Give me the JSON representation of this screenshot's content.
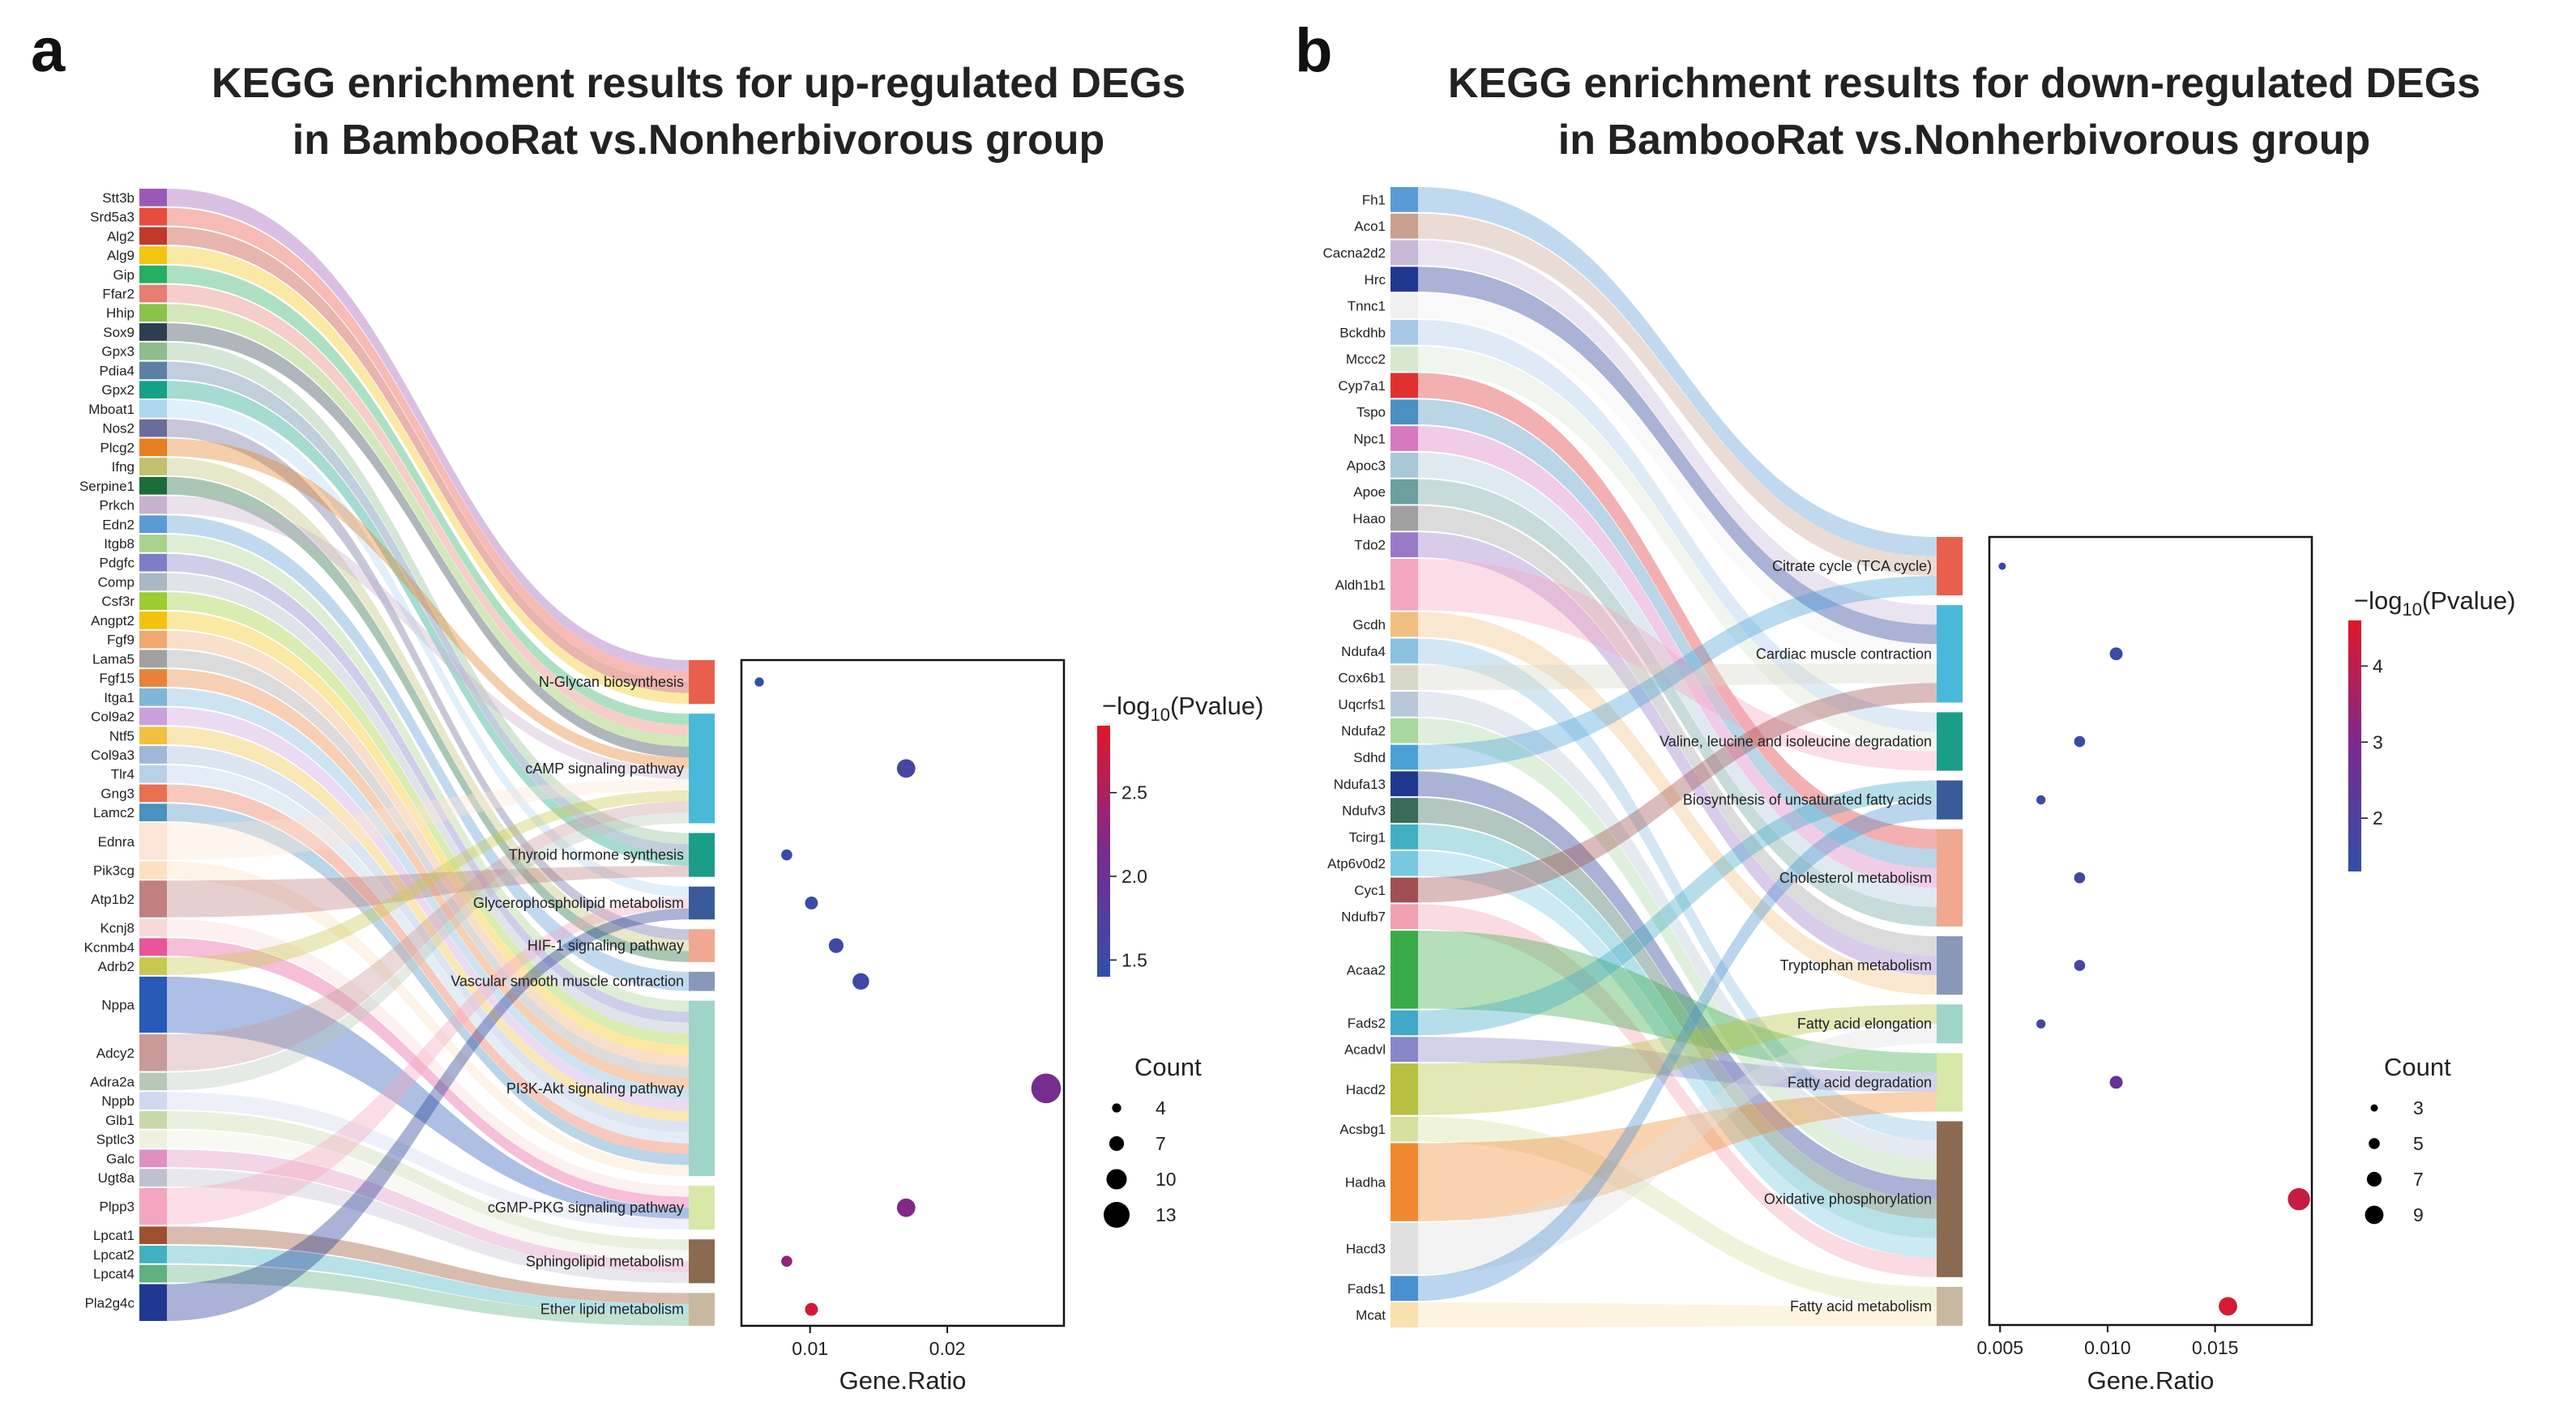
{
  "panels": [
    {
      "letter": "a",
      "title_lines": [
        "KEGG enrichment results for up-regulated DEGs",
        "in BambooRat vs.Nonherbivorous group"
      ],
      "genes": [
        "Stt3b",
        "Srd5a3",
        "Alg2",
        "Alg9",
        "Gip",
        "Ffar2",
        "Hhip",
        "Sox9",
        "Gpx3",
        "Pdia4",
        "Gpx2",
        "Mboat1",
        "Nos2",
        "Plcg2",
        "Ifng",
        "Serpine1",
        "Prkch",
        "Edn2",
        "Itgb8",
        "Pdgfc",
        "Comp",
        "Csf3r",
        "Angpt2",
        "Fgf9",
        "Lama5",
        "Fgf15",
        "Itga1",
        "Col9a2",
        "Ntf5",
        "Col9a3",
        "Tlr4",
        "Gng3",
        "Lamc2",
        "Ednra",
        "Pik3cg",
        "Atp1b2",
        "Kcnj8",
        "Kcnmb4",
        "Adrb2",
        "Nppa",
        "Adcy2",
        "Adra2a",
        "Nppb",
        "Glb1",
        "Sptlc3",
        "Galc",
        "Ugt8a",
        "Plpp3",
        "Lpcat1",
        "Lpcat2",
        "Lpcat4",
        "Pla2g4c"
      ],
      "gene_colors": [
        "#9b59b6",
        "#e74c3c",
        "#c0392b",
        "#f1c40f",
        "#27ae60",
        "#e67e73",
        "#8bc34a",
        "#2c3e50",
        "#8fbc8f",
        "#5d7fa3",
        "#16a085",
        "#aed6f1",
        "#6c6c9c",
        "#e67e22",
        "#c0c070",
        "#1e6b3a",
        "#c8b0d0",
        "#5b9bd5",
        "#a9d18e",
        "#7e7ec8",
        "#aab7c4",
        "#9acd32",
        "#f4c20d",
        "#f0a870",
        "#a0a0a0",
        "#e8823a",
        "#7eb6d9",
        "#c9a0dc",
        "#f0c040",
        "#a0b8d8",
        "#b8d0e8",
        "#e87050",
        "#4a90c0",
        "#fce4d6",
        "#fde0c0",
        "#c08080",
        "#f8d8d8",
        "#e8559a",
        "#c8c850",
        "#2858b8",
        "#c89a98",
        "#b8c8b8",
        "#d0d8f0",
        "#c8d8a8",
        "#f0f0e0",
        "#e090c0",
        "#c0c0d0",
        "#f4a6c0",
        "#9c5030",
        "#40b0c0",
        "#60b080",
        "#203890"
      ],
      "gene_weights": [
        1,
        1,
        1,
        1,
        1,
        1,
        1,
        1,
        1,
        1,
        1,
        1,
        1,
        1,
        1,
        1,
        1,
        1,
        1,
        1,
        1,
        1,
        1,
        1,
        1,
        1,
        1,
        1,
        1,
        1,
        1,
        1,
        1,
        2,
        1,
        2,
        1,
        1,
        1,
        3,
        2,
        1,
        1,
        1,
        1,
        1,
        1,
        2,
        1,
        1,
        1,
        2
      ],
      "pathways": [
        "N-Glycan biosynthesis",
        "cAMP signaling pathway",
        "Thyroid hormone synthesis",
        "Glycerophospholipid metabolism",
        "HIF-1 signaling pathway",
        "Vascular smooth muscle contraction",
        "PI3K-Akt signaling pathway",
        "cGMP-PKG signaling pathway",
        "Sphingolipid metabolism",
        "Ether lipid metabolism"
      ],
      "pathway_colors": [
        "#e8604c",
        "#4ab8d8",
        "#1a9e8a",
        "#3a5a9a",
        "#f0a890",
        "#8898b8",
        "#9fd4c8",
        "#d8e8a8",
        "#8a6a50",
        "#c8b8a0"
      ],
      "links": [
        [
          0,
          0
        ],
        [
          1,
          0
        ],
        [
          2,
          0
        ],
        [
          3,
          0
        ],
        [
          4,
          1
        ],
        [
          5,
          1
        ],
        [
          6,
          1
        ],
        [
          7,
          1
        ],
        [
          8,
          2
        ],
        [
          9,
          2
        ],
        [
          10,
          2
        ],
        [
          11,
          3
        ],
        [
          12,
          4
        ],
        [
          13,
          1
        ],
        [
          14,
          4
        ],
        [
          15,
          4
        ],
        [
          16,
          1
        ],
        [
          17,
          5
        ],
        [
          18,
          6
        ],
        [
          19,
          6
        ],
        [
          20,
          6
        ],
        [
          21,
          6
        ],
        [
          22,
          6
        ],
        [
          23,
          6
        ],
        [
          24,
          6
        ],
        [
          25,
          6
        ],
        [
          26,
          6
        ],
        [
          27,
          6
        ],
        [
          28,
          6
        ],
        [
          29,
          6
        ],
        [
          30,
          6
        ],
        [
          31,
          6
        ],
        [
          32,
          6
        ],
        [
          33,
          1
        ],
        [
          34,
          6
        ],
        [
          35,
          2
        ],
        [
          36,
          7
        ],
        [
          37,
          7
        ],
        [
          38,
          1
        ],
        [
          39,
          7
        ],
        [
          40,
          1
        ],
        [
          41,
          1
        ],
        [
          42,
          7
        ],
        [
          43,
          8
        ],
        [
          44,
          8
        ],
        [
          45,
          8
        ],
        [
          46,
          8
        ],
        [
          47,
          3
        ],
        [
          48,
          9
        ],
        [
          49,
          9
        ],
        [
          50,
          9
        ],
        [
          51,
          3
        ]
      ],
      "right_pathway_ticks": true
    },
    {
      "letter": "b",
      "title_lines": [
        "KEGG enrichment results for down-regulated DEGs",
        "in BambooRat vs.Nonherbivorous group"
      ],
      "genes": [
        "Fh1",
        "Aco1",
        "Cacna2d2",
        "Hrc",
        "Tnnc1",
        "Bckdhb",
        "Mccc2",
        "Cyp7a1",
        "Tspo",
        "Npc1",
        "Apoc3",
        "Apoe",
        "Haao",
        "Tdo2",
        "Aldh1b1",
        "Gcdh",
        "Ndufa4",
        "Cox6b1",
        "Uqcrfs1",
        "Ndufa2",
        "Sdhd",
        "Ndufa13",
        "Ndufv3",
        "Tcirg1",
        "Atp6v0d2",
        "Cyc1",
        "Ndufb7",
        "Acaa2",
        "Fads2",
        "Acadvl",
        "Hacd2",
        "Acsbg1",
        "Hadha",
        "Hacd3",
        "Fads1",
        "Mcat"
      ],
      "gene_colors": [
        "#5b9bd5",
        "#c8a090",
        "#c8b8d8",
        "#203890",
        "#f0f0f0",
        "#a8c8e8",
        "#d8e8d0",
        "#e03030",
        "#4a90c0",
        "#d878c0",
        "#a8c8d8",
        "#6ca0a0",
        "#a0a0a0",
        "#9a7ac8",
        "#f4a6c0",
        "#f0c080",
        "#8ac0e0",
        "#d8d8c8",
        "#b8c8d8",
        "#a8d8a0",
        "#4aa0d8",
        "#203890",
        "#3a6a5a",
        "#40b0c0",
        "#78c8e0",
        "#a05050",
        "#f0a0b0",
        "#3aaa48",
        "#40a8c8",
        "#8888c8",
        "#b8c040",
        "#d8e0a0",
        "#f08830",
        "#e0e0e0",
        "#4a90d0",
        "#f8e0b0"
      ],
      "gene_weights": [
        1,
        1,
        1,
        1,
        1,
        1,
        1,
        1,
        1,
        1,
        1,
        1,
        1,
        1,
        2,
        1,
        1,
        1,
        1,
        1,
        1,
        1,
        1,
        1,
        1,
        1,
        1,
        3,
        1,
        1,
        2,
        1,
        3,
        2,
        1,
        1
      ],
      "pathways": [
        "Citrate cycle (TCA cycle)",
        "Cardiac muscle contraction",
        "Valine, leucine and isoleucine degradation",
        "Biosynthesis of unsaturated fatty acids",
        "Cholesterol metabolism",
        "Tryptophan metabolism",
        "Fatty acid elongation",
        "Fatty acid degradation",
        "Oxidative phosphorylation",
        "Fatty acid metabolism"
      ],
      "pathway_colors": [
        "#e8604c",
        "#4ab8d8",
        "#1a9e8a",
        "#3a5a9a",
        "#f0a890",
        "#8898b8",
        "#9fd4c8",
        "#d8e8a8",
        "#8a6a50",
        "#c8b8a0"
      ],
      "links": [
        [
          0,
          0
        ],
        [
          1,
          0
        ],
        [
          2,
          1
        ],
        [
          3,
          1
        ],
        [
          4,
          1
        ],
        [
          5,
          2
        ],
        [
          6,
          2
        ],
        [
          7,
          4
        ],
        [
          8,
          4
        ],
        [
          9,
          4
        ],
        [
          10,
          4
        ],
        [
          11,
          4
        ],
        [
          12,
          5
        ],
        [
          13,
          5
        ],
        [
          14,
          2
        ],
        [
          15,
          5
        ],
        [
          16,
          8
        ],
        [
          17,
          1
        ],
        [
          18,
          8
        ],
        [
          19,
          8
        ],
        [
          20,
          0
        ],
        [
          21,
          8
        ],
        [
          22,
          8
        ],
        [
          23,
          8
        ],
        [
          24,
          8
        ],
        [
          25,
          1
        ],
        [
          26,
          8
        ],
        [
          27,
          7
        ],
        [
          28,
          3
        ],
        [
          29,
          7
        ],
        [
          30,
          6
        ],
        [
          31,
          9
        ],
        [
          32,
          7
        ],
        [
          33,
          6
        ],
        [
          34,
          3
        ],
        [
          35,
          9
        ]
      ],
      "right_pathway_ticks": false
    }
  ],
  "chart_data": [
    {
      "type": "scatter",
      "title": "KEGG enrichment results for up-regulated DEGs in BambooRat vs.Nonherbivorous group",
      "xlabel": "Gene.Ratio",
      "ylabel": "",
      "xlim": [
        0.005,
        0.0285
      ],
      "xticks": [
        0.01,
        0.02
      ],
      "xtick_labels": [
        "0.01",
        "0.02"
      ],
      "categories": [
        "N-Glycan biosynthesis",
        "cAMP signaling pathway",
        "Thyroid hormone synthesis",
        "Glycerophospholipid metabolism",
        "HIF-1 signaling pathway",
        "Vascular smooth muscle contraction",
        "PI3K-Akt signaling pathway",
        "cGMP-PKG signaling pathway",
        "Sphingolipid metabolism",
        "Ether lipid metabolism"
      ],
      "gene_ratio": [
        0.0063,
        0.017,
        0.0083,
        0.0101,
        0.0119,
        0.0137,
        0.0272,
        0.017,
        0.0083,
        0.0101
      ],
      "count": [
        4,
        9,
        5,
        6,
        7,
        8,
        15,
        9,
        5,
        6
      ],
      "neg_log10_pvalue": [
        1.4,
        1.6,
        1.5,
        1.5,
        1.55,
        1.55,
        2.1,
        2.2,
        2.3,
        2.8
      ],
      "color_legend_title": "-log10(Pvalue)",
      "color_range": [
        1.4,
        2.9
      ],
      "color_ticks": [
        "2.5",
        "2.0",
        "1.5"
      ],
      "size_legend_title": "Count",
      "size_legend_values": [
        "4",
        "7",
        "10",
        "13"
      ]
    },
    {
      "type": "scatter",
      "title": "KEGG enrichment results for down-regulated DEGs in BambooRat vs.Nonherbivorous group",
      "xlabel": "Gene.Ratio",
      "ylabel": "",
      "xlim": [
        0.0045,
        0.0195
      ],
      "xticks": [
        0.005,
        0.01,
        0.015
      ],
      "xtick_labels": [
        "0.005",
        "0.010",
        "0.015"
      ],
      "categories": [
        "Citrate cycle (TCA cycle)",
        "Cardiac muscle contraction",
        "Valine, leucine and isoleucine degradation",
        "Biosynthesis of unsaturated fatty acids",
        "Cholesterol metabolism",
        "Tryptophan metabolism",
        "Fatty acid elongation",
        "Fatty acid degradation",
        "Oxidative phosphorylation",
        "Fatty acid metabolism"
      ],
      "gene_ratio": [
        0.0051,
        0.0104,
        0.0087,
        0.0069,
        0.0087,
        0.0087,
        0.0069,
        0.0104,
        0.0189,
        0.0156
      ],
      "count": [
        3,
        6,
        5,
        4,
        5,
        5,
        4,
        6,
        11,
        9
      ],
      "neg_log10_pvalue": [
        1.6,
        1.5,
        1.5,
        1.6,
        1.7,
        1.8,
        1.8,
        2.5,
        4.2,
        4.4
      ],
      "color_legend_title": "-log10(Pvalue)",
      "color_range": [
        1.3,
        4.6
      ],
      "color_ticks": [
        "4",
        "3",
        "2"
      ],
      "size_legend_title": "Count",
      "size_legend_values": [
        "3",
        "5",
        "7",
        "9"
      ]
    }
  ]
}
